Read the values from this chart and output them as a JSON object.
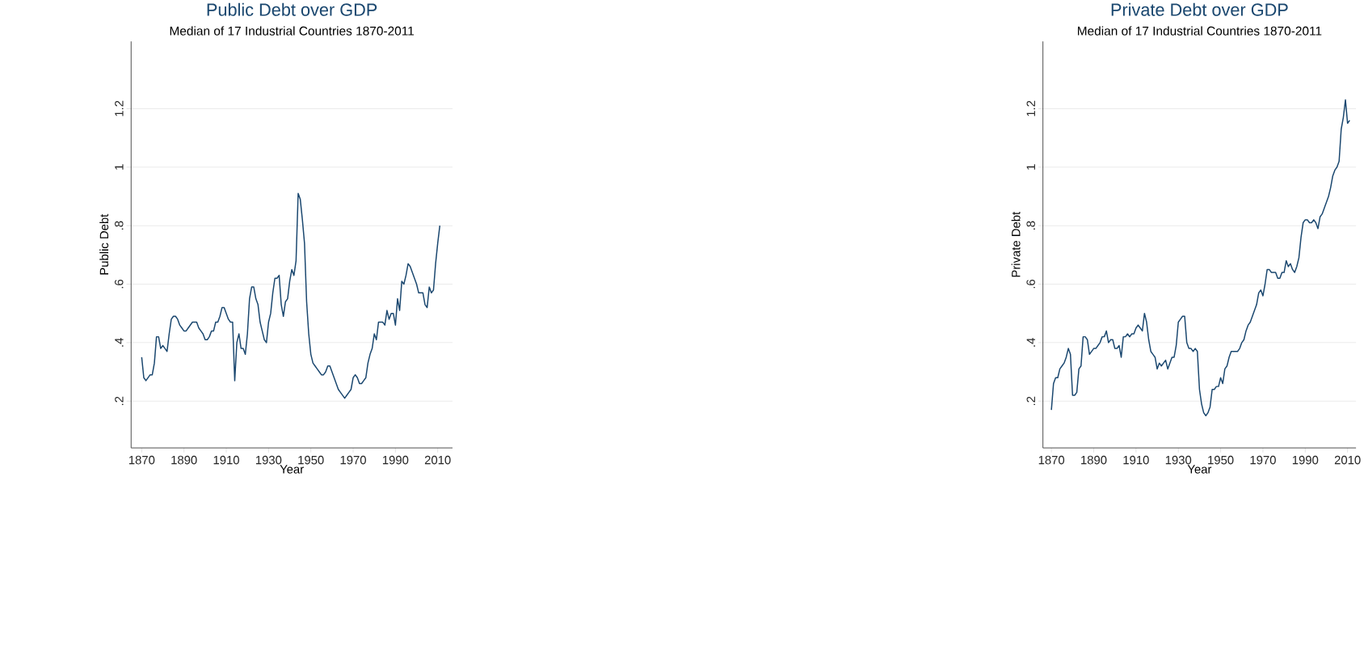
{
  "chart_data": [
    {
      "type": "line",
      "title": "Public Debt over GDP",
      "subtitle": "Median of 17 Industrial Countries 1870-2011",
      "xlabel": "Year",
      "ylabel": "Public Debt",
      "color": "#1a476f",
      "grid": "y",
      "xlim": [
        1865,
        2017
      ],
      "ylim": [
        0.04,
        1.43
      ],
      "xticks": [
        1870,
        1890,
        1910,
        1930,
        1950,
        1970,
        1990,
        2010
      ],
      "yticks": [
        {
          "value": 0.2,
          "label": ".2"
        },
        {
          "value": 0.4,
          "label": ".4"
        },
        {
          "value": 0.6,
          "label": ".6"
        },
        {
          "value": 0.8,
          "label": ".8"
        },
        1,
        1.2
      ],
      "x": [
        1870,
        1871,
        1872,
        1873,
        1874,
        1875,
        1876,
        1877,
        1878,
        1879,
        1880,
        1881,
        1882,
        1883,
        1884,
        1885,
        1886,
        1887,
        1888,
        1889,
        1890,
        1891,
        1892,
        1893,
        1894,
        1895,
        1896,
        1897,
        1898,
        1899,
        1900,
        1901,
        1902,
        1903,
        1904,
        1905,
        1906,
        1907,
        1908,
        1909,
        1910,
        1911,
        1912,
        1913,
        1914,
        1915,
        1916,
        1917,
        1918,
        1919,
        1920,
        1921,
        1922,
        1923,
        1924,
        1925,
        1926,
        1927,
        1928,
        1929,
        1930,
        1931,
        1932,
        1933,
        1934,
        1935,
        1936,
        1937,
        1938,
        1939,
        1940,
        1941,
        1942,
        1943,
        1944,
        1945,
        1946,
        1947,
        1948,
        1949,
        1950,
        1951,
        1952,
        1953,
        1954,
        1955,
        1956,
        1957,
        1958,
        1959,
        1960,
        1961,
        1962,
        1963,
        1964,
        1965,
        1966,
        1967,
        1968,
        1969,
        1970,
        1971,
        1972,
        1973,
        1974,
        1975,
        1976,
        1977,
        1978,
        1979,
        1980,
        1981,
        1982,
        1983,
        1984,
        1985,
        1986,
        1987,
        1988,
        1989,
        1990,
        1991,
        1992,
        1993,
        1994,
        1995,
        1996,
        1997,
        1998,
        1999,
        2000,
        2001,
        2002,
        2003,
        2004,
        2005,
        2006,
        2007,
        2008,
        2009,
        2010,
        2011
      ],
      "values": [
        0.35,
        0.28,
        0.27,
        0.28,
        0.29,
        0.29,
        0.33,
        0.42,
        0.42,
        0.38,
        0.39,
        0.38,
        0.37,
        0.43,
        0.48,
        0.49,
        0.49,
        0.48,
        0.46,
        0.45,
        0.44,
        0.44,
        0.45,
        0.46,
        0.47,
        0.47,
        0.47,
        0.45,
        0.44,
        0.43,
        0.41,
        0.41,
        0.42,
        0.44,
        0.44,
        0.47,
        0.47,
        0.49,
        0.52,
        0.52,
        0.5,
        0.48,
        0.47,
        0.47,
        0.27,
        0.4,
        0.43,
        0.38,
        0.38,
        0.36,
        0.43,
        0.55,
        0.59,
        0.59,
        0.55,
        0.53,
        0.47,
        0.44,
        0.41,
        0.4,
        0.47,
        0.5,
        0.57,
        0.62,
        0.62,
        0.63,
        0.53,
        0.49,
        0.54,
        0.55,
        0.61,
        0.65,
        0.63,
        0.68,
        0.91,
        0.89,
        0.82,
        0.74,
        0.54,
        0.43,
        0.36,
        0.33,
        0.32,
        0.31,
        0.3,
        0.29,
        0.29,
        0.3,
        0.32,
        0.32,
        0.3,
        0.28,
        0.26,
        0.24,
        0.23,
        0.22,
        0.21,
        0.22,
        0.23,
        0.24,
        0.28,
        0.29,
        0.28,
        0.26,
        0.26,
        0.27,
        0.28,
        0.33,
        0.36,
        0.38,
        0.43,
        0.41,
        0.47,
        0.47,
        0.47,
        0.46,
        0.51,
        0.48,
        0.5,
        0.5,
        0.46,
        0.55,
        0.51,
        0.61,
        0.6,
        0.63,
        0.67,
        0.66,
        0.64,
        0.62,
        0.6,
        0.57,
        0.57,
        0.57,
        0.53,
        0.52,
        0.59,
        0.57,
        0.58,
        0.67,
        0.74,
        0.8
      ]
    },
    {
      "type": "line",
      "title": "Private Debt over GDP",
      "subtitle": "Median of 17 Industrial Countries 1870-2011",
      "xlabel": "Year",
      "ylabel": "Private Debt",
      "color": "#1a476f",
      "grid": "y",
      "xlim": [
        1866,
        2014
      ],
      "ylim": [
        0.04,
        1.43
      ],
      "xticks": [
        1870,
        1890,
        1910,
        1930,
        1950,
        1970,
        1990,
        2010
      ],
      "yticks": [
        {
          "value": 0.2,
          "label": ".2"
        },
        {
          "value": 0.4,
          "label": ".4"
        },
        {
          "value": 0.6,
          "label": ".6"
        },
        {
          "value": 0.8,
          "label": ".8"
        },
        1,
        1.2
      ],
      "x": [
        1870,
        1871,
        1872,
        1873,
        1874,
        1875,
        1876,
        1877,
        1878,
        1879,
        1880,
        1881,
        1882,
        1883,
        1884,
        1885,
        1886,
        1887,
        1888,
        1889,
        1890,
        1891,
        1892,
        1893,
        1894,
        1895,
        1896,
        1897,
        1898,
        1899,
        1900,
        1901,
        1902,
        1903,
        1904,
        1905,
        1906,
        1907,
        1908,
        1909,
        1910,
        1911,
        1912,
        1913,
        1914,
        1915,
        1916,
        1917,
        1918,
        1919,
        1920,
        1921,
        1922,
        1923,
        1924,
        1925,
        1926,
        1927,
        1928,
        1929,
        1930,
        1931,
        1932,
        1933,
        1934,
        1935,
        1936,
        1937,
        1938,
        1939,
        1940,
        1941,
        1942,
        1943,
        1944,
        1945,
        1946,
        1947,
        1948,
        1949,
        1950,
        1951,
        1952,
        1953,
        1954,
        1955,
        1956,
        1957,
        1958,
        1959,
        1960,
        1961,
        1962,
        1963,
        1964,
        1965,
        1966,
        1967,
        1968,
        1969,
        1970,
        1971,
        1972,
        1973,
        1974,
        1975,
        1976,
        1977,
        1978,
        1979,
        1980,
        1981,
        1982,
        1983,
        1984,
        1985,
        1986,
        1987,
        1988,
        1989,
        1990,
        1991,
        1992,
        1993,
        1994,
        1995,
        1996,
        1997,
        1998,
        1999,
        2000,
        2001,
        2002,
        2003,
        2004,
        2005,
        2006,
        2007,
        2008,
        2009,
        2010,
        2011
      ],
      "values": [
        0.17,
        0.26,
        0.28,
        0.28,
        0.31,
        0.32,
        0.33,
        0.35,
        0.38,
        0.36,
        0.22,
        0.22,
        0.23,
        0.31,
        0.32,
        0.42,
        0.42,
        0.41,
        0.36,
        0.37,
        0.38,
        0.38,
        0.39,
        0.4,
        0.42,
        0.42,
        0.44,
        0.4,
        0.41,
        0.41,
        0.38,
        0.38,
        0.39,
        0.35,
        0.42,
        0.42,
        0.43,
        0.42,
        0.43,
        0.43,
        0.45,
        0.46,
        0.45,
        0.44,
        0.5,
        0.47,
        0.41,
        0.37,
        0.36,
        0.35,
        0.31,
        0.33,
        0.32,
        0.33,
        0.34,
        0.31,
        0.33,
        0.35,
        0.35,
        0.39,
        0.47,
        0.48,
        0.49,
        0.49,
        0.4,
        0.38,
        0.38,
        0.37,
        0.38,
        0.37,
        0.24,
        0.19,
        0.16,
        0.15,
        0.16,
        0.18,
        0.24,
        0.24,
        0.25,
        0.25,
        0.28,
        0.26,
        0.31,
        0.32,
        0.35,
        0.37,
        0.37,
        0.37,
        0.37,
        0.38,
        0.4,
        0.41,
        0.44,
        0.46,
        0.47,
        0.49,
        0.51,
        0.53,
        0.57,
        0.58,
        0.56,
        0.6,
        0.65,
        0.65,
        0.64,
        0.64,
        0.64,
        0.62,
        0.62,
        0.64,
        0.64,
        0.68,
        0.66,
        0.67,
        0.65,
        0.64,
        0.66,
        0.69,
        0.76,
        0.81,
        0.82,
        0.82,
        0.81,
        0.81,
        0.82,
        0.81,
        0.79,
        0.83,
        0.84,
        0.86,
        0.88,
        0.9,
        0.93,
        0.97,
        0.99,
        1.0,
        1.02,
        1.13,
        1.17,
        1.23,
        1.15,
        1.16
      ]
    }
  ]
}
